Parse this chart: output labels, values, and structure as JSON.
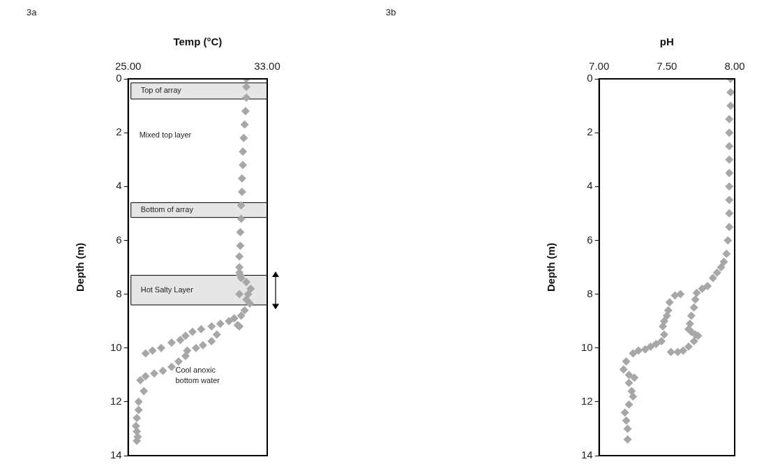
{
  "chart_data": [
    {
      "type": "scatter",
      "xlabel": "Temp (°C)",
      "ylabel": "Depth (m)",
      "annotations": [
        "3a",
        "Mixed top layer",
        "Cool anoxic bottom water"
      ],
      "xlim": [
        25,
        33
      ],
      "xticks": [
        {
          "value": 25,
          "label": "25.00"
        },
        {
          "value": 33,
          "label": "33.00"
        }
      ],
      "ylim": [
        14,
        0
      ],
      "yticks": [
        0,
        2,
        4,
        6,
        8,
        10,
        12,
        14
      ],
      "grid": false,
      "legend": false,
      "marker": "diamond",
      "bands": [
        {
          "axis": "y",
          "from": 0.15,
          "to": 0.75,
          "label": "Top of array",
          "color": "#e6e6e6"
        },
        {
          "axis": "y",
          "from": 4.6,
          "to": 5.15,
          "label": "Bottom of array",
          "color": "#e6e6e6"
        },
        {
          "axis": "y",
          "from": 7.3,
          "to": 8.4,
          "label": "Hot Salty Layer",
          "color": "#e6e6e6"
        }
      ],
      "series": [
        {
          "color": "#a9a6a6",
          "x": [
            31.8,
            31.8,
            31.8,
            31.75,
            31.7,
            31.65,
            31.6,
            31.6,
            31.55,
            31.55,
            31.5,
            31.5,
            31.45,
            31.45,
            31.4,
            31.4,
            31.4,
            31.45,
            31.5,
            31.8,
            32.05,
            31.9,
            31.4,
            31.8,
            32.0,
            31.7,
            31.5,
            31.1,
            30.8,
            31.3,
            31.4,
            30.3,
            29.8,
            29.2,
            28.7,
            28.3,
            28.0,
            27.5,
            26.9,
            26.4,
            26.0,
            30.1,
            29.8,
            29.3,
            28.9,
            28.4,
            28.3,
            27.9,
            27.5,
            27.0,
            26.5,
            26.0,
            25.7,
            25.9,
            25.6,
            25.6,
            25.5,
            25.45,
            25.5,
            25.55,
            25.5
          ],
          "values": [
            0,
            0.3,
            0.7,
            1.2,
            1.7,
            2.2,
            2.7,
            3.2,
            3.7,
            4.2,
            4.7,
            5.2,
            5.7,
            6.2,
            6.6,
            7.0,
            7.2,
            7.3,
            7.4,
            7.55,
            7.8,
            8.0,
            8.0,
            8.2,
            8.35,
            8.6,
            8.8,
            8.9,
            9.0,
            9.15,
            9.2,
            9.1,
            9.2,
            9.3,
            9.4,
            9.55,
            9.7,
            9.8,
            10.0,
            10.1,
            10.2,
            9.5,
            9.75,
            9.9,
            10.0,
            10.1,
            10.3,
            10.5,
            10.7,
            10.85,
            10.95,
            11.05,
            11.2,
            11.6,
            12.0,
            12.3,
            12.6,
            12.9,
            13.1,
            13.3,
            13.45
          ]
        }
      ]
    },
    {
      "type": "scatter",
      "xlabel": "pH",
      "ylabel": "Depth (m)",
      "annotations": [
        "3b"
      ],
      "xlim": [
        7,
        8
      ],
      "xticks": [
        {
          "value": 7,
          "label": "7.00"
        },
        {
          "value": 7.5,
          "label": "7.50"
        },
        {
          "value": 8,
          "label": "8.00"
        }
      ],
      "ylim": [
        14,
        0
      ],
      "yticks": [
        0,
        2,
        4,
        6,
        8,
        10,
        12,
        14
      ],
      "grid": false,
      "legend": false,
      "marker": "diamond",
      "series": [
        {
          "color": "#a9a6a6",
          "x": [
            7.97,
            7.97,
            7.97,
            7.96,
            7.96,
            7.96,
            7.96,
            7.96,
            7.96,
            7.96,
            7.96,
            7.96,
            7.95,
            7.94,
            7.92,
            7.9,
            7.87,
            7.84,
            7.8,
            7.76,
            7.72,
            7.71,
            7.7,
            7.68,
            7.67,
            7.66,
            7.68,
            7.71,
            7.73,
            7.7,
            7.66,
            7.62,
            7.58,
            7.53,
            7.6,
            7.56,
            7.52,
            7.51,
            7.5,
            7.48,
            7.47,
            7.48,
            7.46,
            7.42,
            7.38,
            7.34,
            7.29,
            7.25,
            7.2,
            7.18,
            7.22,
            7.26,
            7.22,
            7.24,
            7.25,
            7.22,
            7.19,
            7.2,
            7.21,
            7.21
          ],
          "values": [
            0,
            0.5,
            1.0,
            1.5,
            2.0,
            2.5,
            3.0,
            3.5,
            4.0,
            4.5,
            5.0,
            5.5,
            6.0,
            6.5,
            6.8,
            7.0,
            7.2,
            7.4,
            7.7,
            7.8,
            7.95,
            8.2,
            8.5,
            8.8,
            9.1,
            9.3,
            9.4,
            9.5,
            9.55,
            9.75,
            9.95,
            10.1,
            10.15,
            10.15,
            8.0,
            8.05,
            8.3,
            8.6,
            8.8,
            9.0,
            9.2,
            9.5,
            9.75,
            9.85,
            9.95,
            10.05,
            10.1,
            10.2,
            10.5,
            10.8,
            11.0,
            11.1,
            11.3,
            11.6,
            11.8,
            12.1,
            12.4,
            12.7,
            13.0,
            13.4
          ]
        }
      ]
    }
  ]
}
